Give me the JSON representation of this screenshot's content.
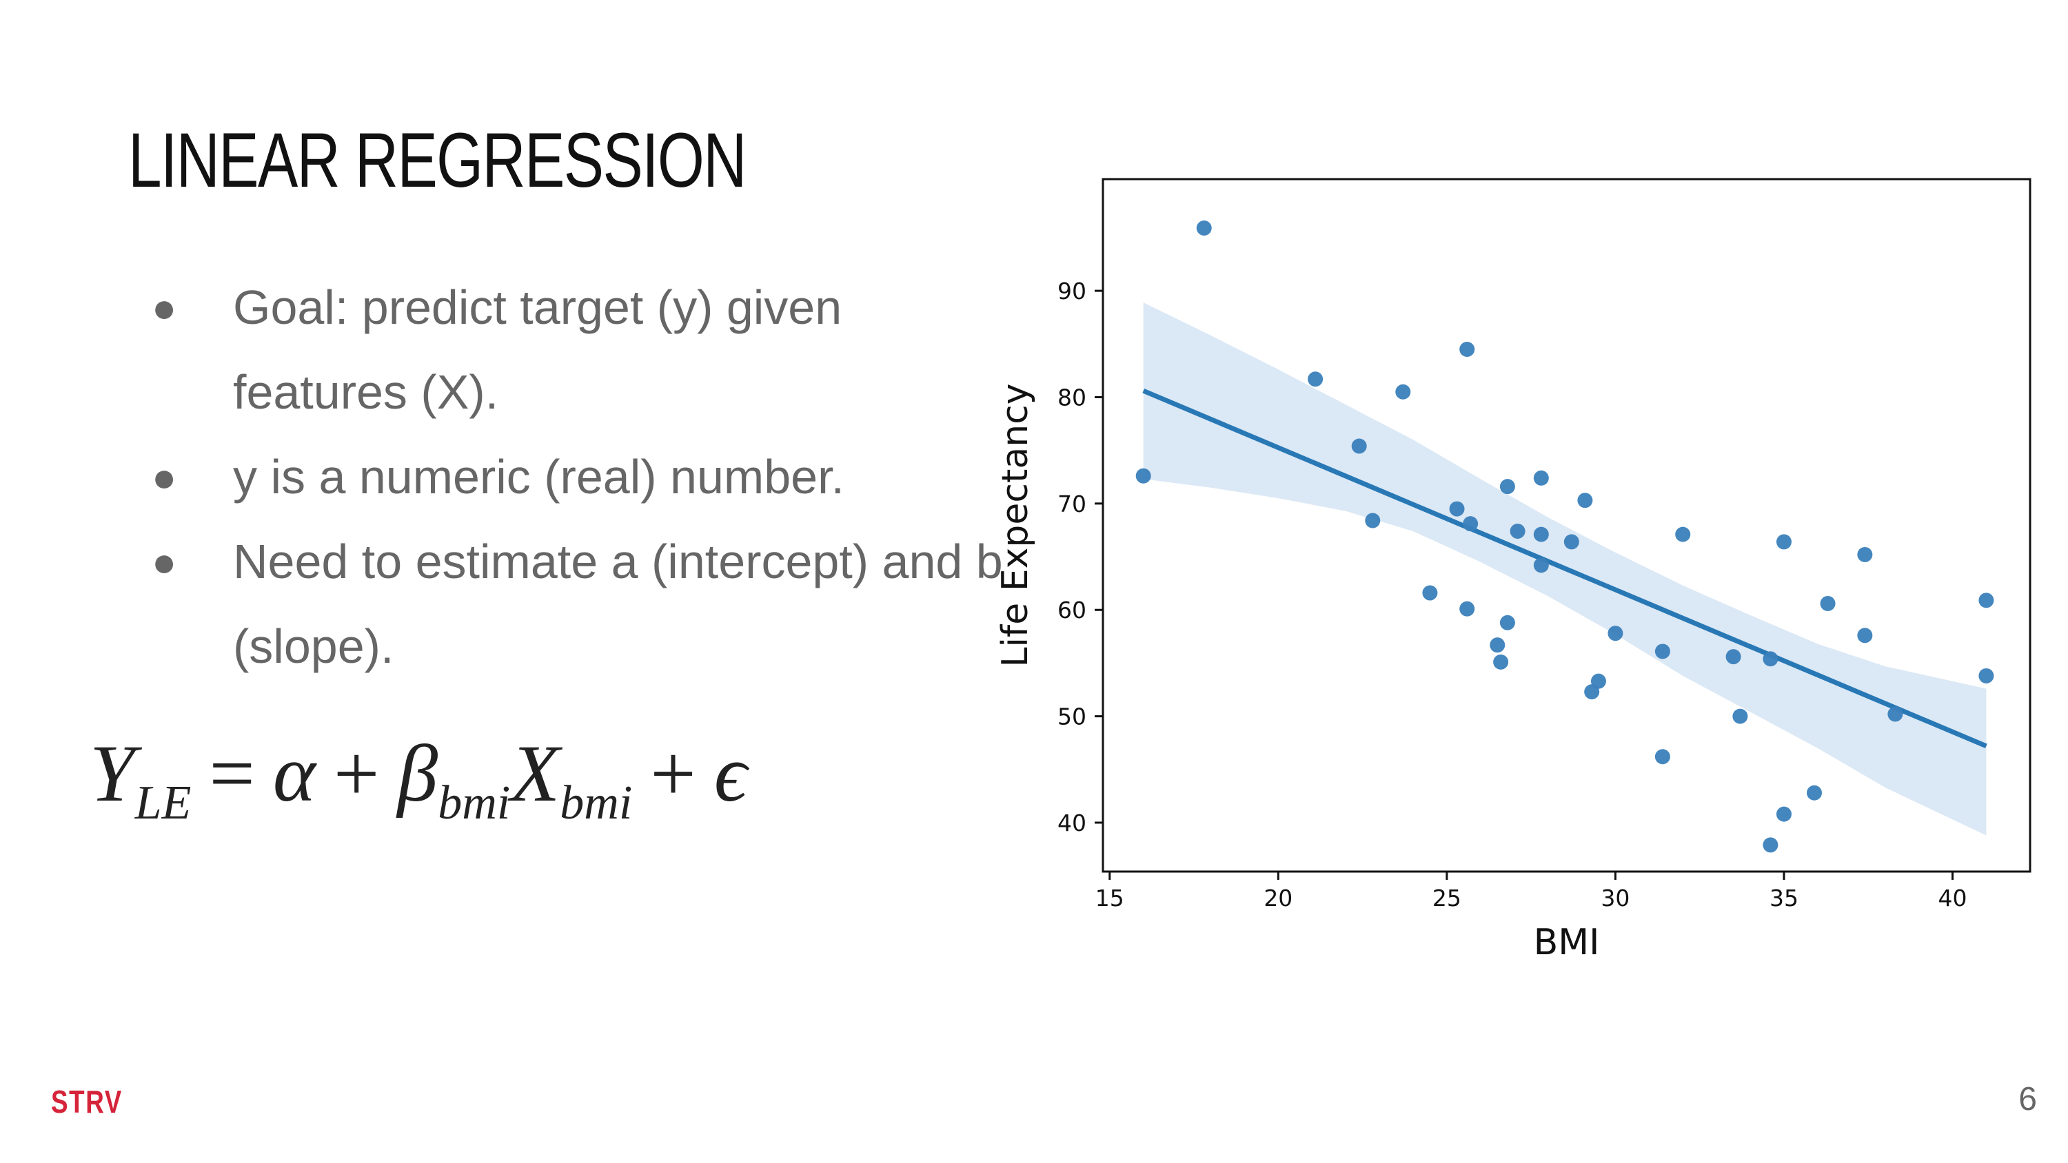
{
  "slide": {
    "title": "LINEAR REGRESSION",
    "bullets": [
      "Goal: predict target (y) given features (X).",
      "y is a numeric (real) number.",
      "Need to estimate a (intercept) and b (slope)."
    ],
    "bullet_symbol": "●",
    "equation": {
      "lhs": "Y",
      "lhs_sub": "LE",
      "equals": "=",
      "alpha": "α",
      "plus1": "+",
      "beta": "β",
      "beta_sub": "bmi",
      "x": "X",
      "x_sub": "bmi",
      "plus2": "+",
      "epsilon": "ϵ"
    },
    "logo": "STRV",
    "page_number": "6"
  },
  "colors": {
    "point": "#3a7fba",
    "line": "#2878b5",
    "band": "#cfe0f1",
    "logo": "#d5243a",
    "bullet_text": "#666666"
  },
  "chart_data": {
    "type": "scatter",
    "xlabel": "BMI",
    "ylabel": "Life Expectancy",
    "xlim": [
      14.8,
      42.3
    ],
    "ylim": [
      35.4,
      100.5
    ],
    "xticks": [
      15,
      20,
      25,
      30,
      35,
      40
    ],
    "yticks": [
      40,
      50,
      60,
      70,
      80,
      90
    ],
    "grid": false,
    "points": [
      [
        16.0,
        72.6
      ],
      [
        17.8,
        95.9
      ],
      [
        21.1,
        81.7
      ],
      [
        22.4,
        75.4
      ],
      [
        22.8,
        68.4
      ],
      [
        23.7,
        80.5
      ],
      [
        24.5,
        61.6
      ],
      [
        25.3,
        69.5
      ],
      [
        25.6,
        60.1
      ],
      [
        25.6,
        84.5
      ],
      [
        25.7,
        68.1
      ],
      [
        26.5,
        56.7
      ],
      [
        26.6,
        55.1
      ],
      [
        26.8,
        71.6
      ],
      [
        26.8,
        58.8
      ],
      [
        27.1,
        67.4
      ],
      [
        27.8,
        72.4
      ],
      [
        27.8,
        67.1
      ],
      [
        27.8,
        64.2
      ],
      [
        28.7,
        66.4
      ],
      [
        29.1,
        70.3
      ],
      [
        29.3,
        52.3
      ],
      [
        29.5,
        53.3
      ],
      [
        30.0,
        57.8
      ],
      [
        31.4,
        56.1
      ],
      [
        31.4,
        46.2
      ],
      [
        32.0,
        67.1
      ],
      [
        33.5,
        55.6
      ],
      [
        33.7,
        50.0
      ],
      [
        34.6,
        55.4
      ],
      [
        34.6,
        37.9
      ],
      [
        35.0,
        40.8
      ],
      [
        35.0,
        66.4
      ],
      [
        35.9,
        42.8
      ],
      [
        36.3,
        60.6
      ],
      [
        37.4,
        65.2
      ],
      [
        37.4,
        57.6
      ],
      [
        38.3,
        50.2
      ],
      [
        41.0,
        60.9
      ],
      [
        41.0,
        53.8
      ]
    ],
    "regression_line": {
      "x": [
        16.0,
        41.0
      ],
      "y": [
        80.6,
        47.2
      ]
    },
    "confidence_band": {
      "x": [
        16,
        18,
        20,
        22,
        24,
        26,
        28,
        30,
        32,
        34,
        36,
        38,
        40,
        41
      ],
      "lower": [
        72.3,
        71.5,
        70.5,
        69.3,
        67.4,
        64.5,
        61.3,
        57.7,
        53.8,
        50.4,
        47.0,
        43.3,
        40.3,
        38.8
      ],
      "upper": [
        88.9,
        85.8,
        82.6,
        79.3,
        76.0,
        72.3,
        68.7,
        65.4,
        62.3,
        59.5,
        56.8,
        54.7,
        53.3,
        52.6
      ]
    }
  }
}
